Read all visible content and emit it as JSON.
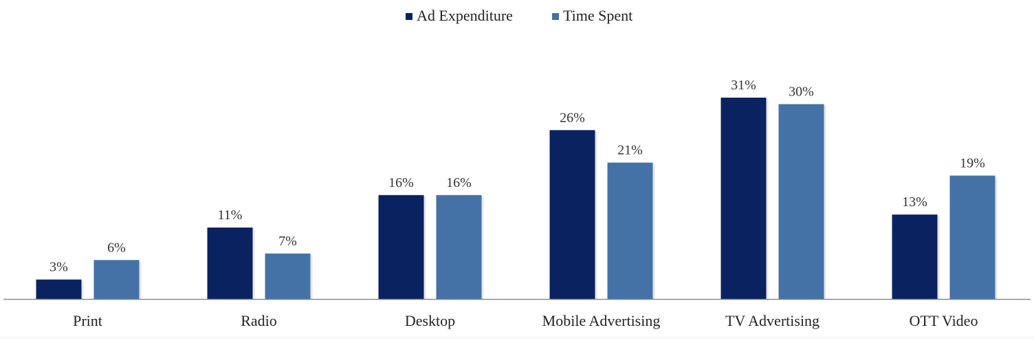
{
  "chart_data": {
    "type": "bar",
    "title": "",
    "xlabel": "",
    "ylabel": "",
    "categories": [
      "Print",
      "Radio",
      "Desktop",
      "Mobile Advertising",
      "TV Advertising",
      "OTT Video"
    ],
    "series": [
      {
        "name": "Ad Expenditure",
        "values": [
          3,
          11,
          16,
          26,
          31,
          13
        ],
        "labels": [
          "3%",
          "11%",
          "16%",
          "26%",
          "31%",
          "13%"
        ],
        "color": "#0b2260"
      },
      {
        "name": "Time Spent",
        "values": [
          6,
          7,
          16,
          21,
          30,
          19
        ],
        "labels": [
          "6%",
          "7%",
          "16%",
          "21%",
          "30%",
          "19%"
        ],
        "color": "#4472a6"
      }
    ],
    "ylim": [
      0,
      35
    ],
    "grid": false,
    "legend_position": "top-center",
    "value_unit": "%"
  }
}
